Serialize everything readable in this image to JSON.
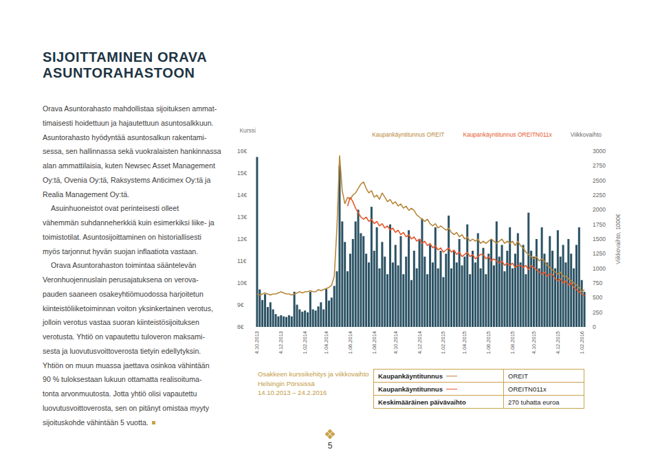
{
  "title": [
    "SIJOITTAMINEN ORAVA",
    "ASUNTORAHASTOON"
  ],
  "paragraphs": [
    [
      "Orava Asuntorahasto mahdollistaa sijoituksen ammat-",
      "timaisesti hoidettuun ja hajautettuun asuntosalkkuun.",
      "Asuntorahasto hyödyntää asuntosalkun rakentami-",
      "sessa, sen hallinnassa sekä vuokralaisten hankinnassa",
      "alan ammattilaisia, kuten Newsec Asset Management",
      "Oy:tä, Ovenia Oy:tä, Raksystems Anticimex Oy:tä ja",
      "Realia Management Oy:tä."
    ],
    [
      "Asuinhuoneistot ovat perinteisesti olleet",
      "vähemmän suhdanneherkkiä kuin esimerkiksi liike- ja",
      "toimistotilat. Asuntosijoittaminen on historiallisesti",
      "myös tarjonnut hyvän suojan inflaatiota vastaan."
    ],
    [
      "Orava Asuntorahaston toimintaa sääntelevän",
      "Veronhuojennuslain perusajatuksena on verova-",
      "pauden saaneen osakeyhtiömuodossa harjoitetun",
      "kiinteistöliiketoiminnan voiton yksinkertainen verotus,",
      "jolloin verotus vastaa suoran kiinteistösijoituksen",
      "verotusta. Yhtiö on vapautettu tuloveron maksami-",
      "sesta ja luovutusvoittoverosta tietyin edellytyksin.",
      "Yhtiön on muun muassa jaettava osinkoa vähintään",
      "90 % tuloksestaan lukuun ottamatta realisoituma-",
      "tonta arvonmuutosta. Jotta yhtiö olisi vapautettu",
      "luovutusvoittoverosta, sen on pitänyt omistaa myyty",
      "sijoituskohde vähintään 5 vuotta."
    ]
  ],
  "chart_data": {
    "type": "bar_line",
    "y_label": "Kurssi",
    "y2_label": "Viikkovaihto, 1000€",
    "legend": "top",
    "grid": false,
    "categories": [
      "4.10.2013",
      null,
      null,
      null,
      null,
      null,
      null,
      null,
      null,
      "4.12.2013",
      null,
      null,
      null,
      null,
      null,
      null,
      null,
      null,
      "1.02.2014",
      null,
      null,
      null,
      null,
      null,
      null,
      null,
      "1.04.2014",
      null,
      null,
      null,
      null,
      null,
      null,
      null,
      null,
      "1.06.2014",
      null,
      null,
      null,
      null,
      null,
      null,
      null,
      null,
      "1.08.2014",
      null,
      null,
      null,
      null,
      null,
      null,
      null,
      "4.10.2014",
      null,
      null,
      null,
      null,
      null,
      null,
      null,
      null,
      "4.12.2014",
      null,
      null,
      null,
      null,
      null,
      null,
      null,
      null,
      "1.02.2015",
      null,
      null,
      null,
      null,
      null,
      null,
      null,
      "1.04.2015",
      null,
      null,
      null,
      null,
      null,
      null,
      null,
      null,
      "1.06.2015",
      null,
      null,
      null,
      null,
      null,
      null,
      null,
      null,
      "1.08.2015",
      null,
      null,
      null,
      null,
      null,
      null,
      null,
      "4.10.2015",
      null,
      null,
      null,
      null,
      null,
      null,
      null,
      null,
      "4.12.2015",
      null,
      null,
      null,
      null,
      null,
      null,
      null,
      null,
      "1.02.2016",
      null
    ],
    "ylim": [
      8,
      16
    ],
    "yticks": [
      {
        "value": 8,
        "label": "8€"
      },
      {
        "value": 9,
        "label": "9€"
      },
      {
        "value": 10,
        "label": "10€"
      },
      {
        "value": 11,
        "label": "11€"
      },
      {
        "value": 12,
        "label": "12€"
      },
      {
        "value": 13,
        "label": "13€"
      },
      {
        "value": 14,
        "label": "14€"
      },
      {
        "value": 15,
        "label": "15€"
      },
      {
        "value": 16,
        "label": "16€"
      }
    ],
    "y2lim": [
      0,
      3000
    ],
    "y2ticks": [
      0,
      250,
      500,
      750,
      1000,
      1250,
      1500,
      1750,
      2000,
      2250,
      2500,
      2750,
      3000
    ],
    "series": [
      {
        "name": "Kaupankäyntitunnus OREIT",
        "type": "line",
        "color": "#b8873a",
        "values": [
          9.5,
          9.45,
          9.5,
          9.55,
          9.5,
          9.45,
          9.5,
          9.5,
          9.55,
          9.6,
          9.55,
          9.5,
          9.5,
          9.45,
          9.5,
          9.55,
          9.6,
          9.55,
          9.6,
          9.6,
          9.65,
          9.6,
          9.6,
          9.7,
          9.65,
          9.7,
          9.75,
          9.8,
          9.9,
          10.3,
          12.5,
          15.8,
          14.2,
          13.6,
          13.9,
          13.8,
          14.0,
          14.1,
          14.3,
          14.5,
          14.6,
          14.3,
          14.1,
          14.2,
          13.9,
          14.0,
          13.8,
          14.1,
          13.9,
          13.7,
          13.8,
          13.6,
          13.7,
          13.5,
          13.6,
          13.4,
          13.5,
          13.3,
          13.4,
          13.3,
          13.1,
          13.0,
          12.9,
          12.8,
          12.9,
          12.7,
          12.6,
          12.7,
          12.5,
          12.6,
          12.5,
          12.4,
          12.5,
          12.3,
          12.2,
          12.3,
          12.1,
          12.2,
          12.0,
          12.1,
          11.9,
          12.0,
          11.9,
          12.0,
          11.8,
          11.9,
          11.8,
          11.9,
          12.0,
          11.9,
          11.8,
          11.9,
          12.0,
          11.8,
          11.9,
          11.8,
          11.9,
          11.7,
          11.9,
          11.7,
          11.6,
          11.4,
          11.3,
          11.2,
          11.1,
          11.2,
          11.0,
          11.1,
          11.0,
          10.8,
          10.7,
          10.6,
          10.5,
          10.4,
          10.5,
          10.3,
          10.3,
          10.2,
          10.1,
          10.0,
          9.9,
          9.8,
          9.6,
          9.7
        ]
      },
      {
        "name": "Kaupankäyntitunnus OREITN011x",
        "type": "line",
        "color": "#e5582b",
        "values": [
          null,
          null,
          null,
          null,
          null,
          null,
          null,
          null,
          null,
          null,
          null,
          null,
          null,
          null,
          null,
          null,
          null,
          null,
          null,
          null,
          null,
          null,
          null,
          null,
          null,
          null,
          null,
          null,
          null,
          null,
          null,
          null,
          null,
          null,
          13.5,
          13.9,
          13.7,
          13.4,
          13.2,
          13.0,
          12.9,
          13.0,
          12.8,
          12.9,
          12.7,
          12.8,
          12.6,
          12.7,
          12.5,
          12.6,
          12.4,
          12.5,
          12.3,
          12.4,
          12.2,
          12.3,
          12.1,
          12.2,
          12.0,
          12.1,
          11.9,
          12.0,
          11.8,
          11.9,
          11.7,
          11.8,
          11.6,
          11.7,
          11.5,
          11.6,
          11.4,
          11.5,
          11.6,
          11.4,
          11.5,
          11.3,
          11.4,
          11.2,
          11.3,
          11.4,
          11.2,
          11.3,
          11.1,
          11.2,
          11.3,
          11.3,
          11.1,
          11.2,
          11.0,
          11.1,
          11.0,
          10.9,
          11.0,
          10.8,
          10.9,
          10.8,
          10.9,
          10.7,
          10.8,
          10.8,
          10.7,
          10.8,
          10.6,
          10.8,
          10.7,
          10.6,
          10.5,
          10.4,
          10.5,
          10.3,
          10.4,
          10.4,
          10.2,
          10.1,
          10.2,
          10.0,
          10.1,
          9.9,
          10.0,
          9.8,
          9.7,
          9.6,
          9.5,
          9.4
        ]
      },
      {
        "name": "Viikkovaihto",
        "type": "bar",
        "axis": "y2",
        "color": "#2b5264",
        "values": [
          2900,
          640,
          460,
          560,
          340,
          420,
          300,
          220,
          180,
          200,
          180,
          170,
          200,
          180,
          600,
          380,
          300,
          260,
          280,
          250,
          600,
          300,
          280,
          350,
          420,
          300,
          650,
          450,
          500,
          700,
          950,
          2750,
          1800,
          1450,
          950,
          1250,
          1500,
          1800,
          2000,
          1600,
          1550,
          1250,
          1100,
          2050,
          1300,
          1700,
          1000,
          1450,
          1200,
          900,
          1750,
          1100,
          1400,
          1050,
          1550,
          900,
          1200,
          1650,
          800,
          1300,
          1000,
          1500,
          1850,
          1200,
          900,
          1400,
          1100,
          1700,
          1000,
          1300,
          850,
          1250,
          1900,
          1000,
          1300,
          1100,
          1500,
          1050,
          1200,
          1750,
          900,
          1300,
          1100,
          1600,
          1000,
          1350,
          900,
          1250,
          1500,
          1050,
          1800,
          1200,
          1400,
          950,
          1300,
          1700,
          1000,
          1250,
          1600,
          1100,
          1400,
          900,
          1950,
          1300,
          1200,
          1500,
          1000,
          1700,
          1250,
          1100,
          1550,
          1300,
          1000,
          1650,
          1200,
          1400,
          1100,
          1500,
          1250,
          1000,
          1400,
          1700,
          800,
          600
        ]
      }
    ]
  },
  "caption": [
    "Osakkeen kurssikehitys ja viikkovaihto",
    "Helsingin Pörssissä",
    "14.10.2013 – 24.2.2016"
  ],
  "table": {
    "rows": [
      [
        "Kaupankäyntitunnus",
        "OREIT"
      ],
      [
        "Kaupankäyntitunnus",
        "OREITN011x"
      ],
      [
        "Keskimääräinen päivävaihto",
        "270 tuhatta euroa"
      ]
    ]
  },
  "page_number": "5"
}
